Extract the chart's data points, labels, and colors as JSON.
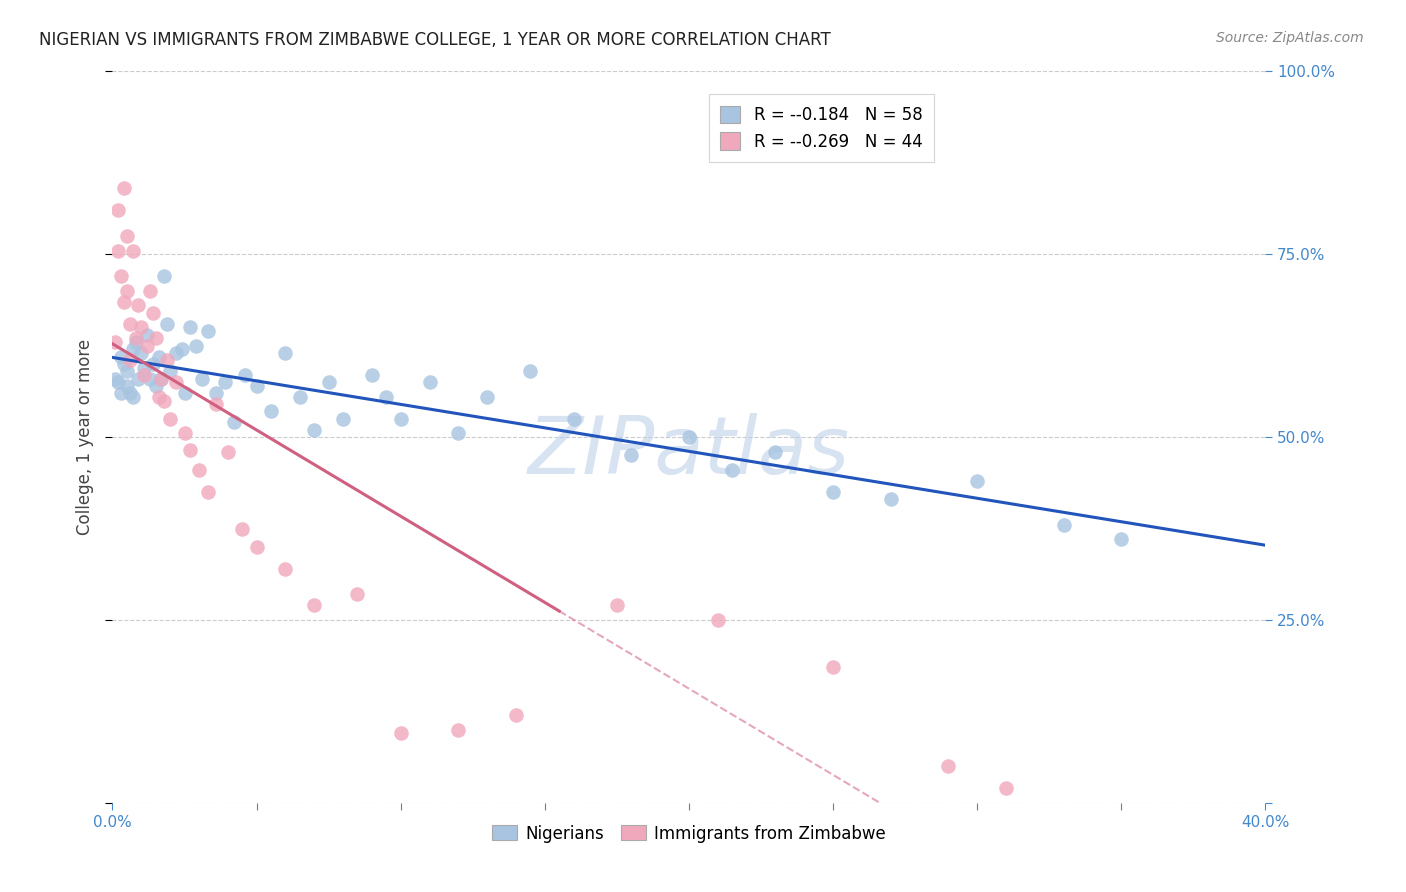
{
  "title": "NIGERIAN VS IMMIGRANTS FROM ZIMBABWE COLLEGE, 1 YEAR OR MORE CORRELATION CHART",
  "source": "Source: ZipAtlas.com",
  "ylabel": "College, 1 year or more",
  "xlim": [
    0.0,
    0.4
  ],
  "ylim": [
    0.0,
    1.0
  ],
  "grid_color": "#cccccc",
  "background_color": "#ffffff",
  "watermark": "ZIPatlas",
  "watermark_color": "#b8cce8",
  "legend_R_blue": "-0.184",
  "legend_N_blue": "58",
  "legend_R_pink": "-0.269",
  "legend_N_pink": "44",
  "blue_scatter_color": "#a8c4e0",
  "pink_scatter_color": "#f0a8bc",
  "blue_line_color": "#2255bb",
  "pink_line_color": "#d06080",
  "axis_label_color": "#4488cc",
  "tick_color": "#4488cc",
  "title_color": "#222222",
  "ylabel_color": "#444444",
  "source_color": "#888888",
  "nigerians_x": [
    0.001,
    0.002,
    0.003,
    0.003,
    0.004,
    0.005,
    0.005,
    0.006,
    0.007,
    0.007,
    0.008,
    0.009,
    0.01,
    0.011,
    0.012,
    0.013,
    0.014,
    0.015,
    0.016,
    0.017,
    0.018,
    0.019,
    0.02,
    0.022,
    0.024,
    0.025,
    0.027,
    0.029,
    0.031,
    0.033,
    0.036,
    0.039,
    0.042,
    0.046,
    0.05,
    0.055,
    0.06,
    0.065,
    0.07,
    0.075,
    0.08,
    0.09,
    0.095,
    0.1,
    0.11,
    0.12,
    0.13,
    0.145,
    0.16,
    0.18,
    0.2,
    0.215,
    0.23,
    0.25,
    0.27,
    0.3,
    0.33,
    0.35
  ],
  "nigerians_y": [
    0.58,
    0.575,
    0.61,
    0.56,
    0.6,
    0.57,
    0.59,
    0.56,
    0.62,
    0.555,
    0.63,
    0.58,
    0.615,
    0.595,
    0.64,
    0.58,
    0.6,
    0.57,
    0.61,
    0.58,
    0.72,
    0.655,
    0.59,
    0.615,
    0.62,
    0.56,
    0.65,
    0.625,
    0.58,
    0.645,
    0.56,
    0.575,
    0.52,
    0.585,
    0.57,
    0.535,
    0.615,
    0.555,
    0.51,
    0.575,
    0.525,
    0.585,
    0.555,
    0.525,
    0.575,
    0.505,
    0.555,
    0.59,
    0.525,
    0.475,
    0.5,
    0.455,
    0.48,
    0.425,
    0.415,
    0.44,
    0.38,
    0.36
  ],
  "zimbabwe_x": [
    0.001,
    0.002,
    0.002,
    0.003,
    0.004,
    0.004,
    0.005,
    0.005,
    0.006,
    0.006,
    0.007,
    0.008,
    0.009,
    0.01,
    0.011,
    0.012,
    0.013,
    0.014,
    0.015,
    0.016,
    0.017,
    0.018,
    0.019,
    0.02,
    0.022,
    0.025,
    0.027,
    0.03,
    0.033,
    0.036,
    0.04,
    0.045,
    0.05,
    0.06,
    0.07,
    0.085,
    0.1,
    0.12,
    0.14,
    0.175,
    0.21,
    0.25,
    0.29,
    0.31
  ],
  "zimbabwe_y": [
    0.63,
    0.81,
    0.755,
    0.72,
    0.685,
    0.84,
    0.775,
    0.7,
    0.655,
    0.605,
    0.755,
    0.635,
    0.68,
    0.65,
    0.585,
    0.625,
    0.7,
    0.67,
    0.635,
    0.555,
    0.58,
    0.55,
    0.605,
    0.525,
    0.575,
    0.505,
    0.483,
    0.455,
    0.425,
    0.545,
    0.48,
    0.375,
    0.35,
    0.32,
    0.27,
    0.285,
    0.095,
    0.1,
    0.12,
    0.27,
    0.25,
    0.185,
    0.05,
    0.02
  ]
}
